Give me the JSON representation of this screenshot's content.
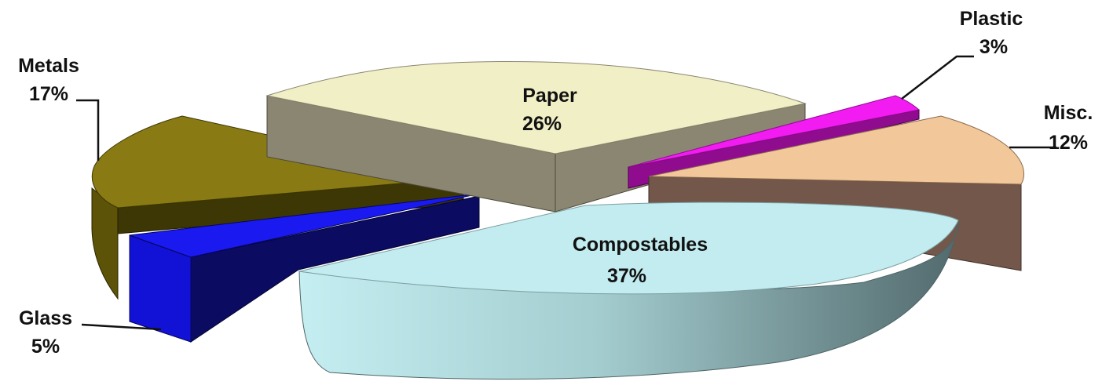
{
  "chart_data": {
    "type": "pie",
    "title": "",
    "slices": [
      {
        "category": "Compostables",
        "value": 37,
        "value_label": "37%",
        "color": "#c2ecef"
      },
      {
        "category": "Misc.",
        "value": 12,
        "value_label": "12%",
        "color": "#f2c89a"
      },
      {
        "category": "Plastic",
        "value": 3,
        "value_label": "3%",
        "color": "#f21cf2"
      },
      {
        "category": "Paper",
        "value": 26,
        "value_label": "26%",
        "color": "#f1efc6"
      },
      {
        "category": "Metals",
        "value": 17,
        "value_label": "17%",
        "color": "#8a7a14"
      },
      {
        "category": "Glass",
        "value": 5,
        "value_label": "5%",
        "color": "#1616e8"
      }
    ],
    "style": "3d-exploded",
    "legend": "none"
  }
}
